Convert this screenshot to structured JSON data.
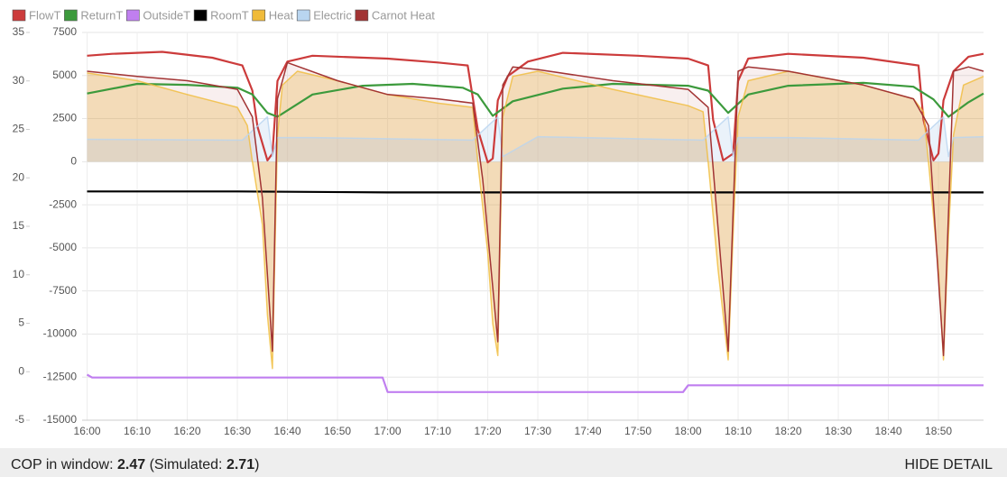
{
  "chart_data": {
    "type": "line",
    "grid": true,
    "xlim": [
      "15:59",
      "18:59"
    ],
    "xticks": [
      "16:00",
      "16:10",
      "16:20",
      "16:30",
      "16:40",
      "16:50",
      "17:00",
      "17:10",
      "17:20",
      "17:30",
      "17:40",
      "17:50",
      "18:00",
      "18:10",
      "18:20",
      "18:30",
      "18:40",
      "18:50"
    ],
    "ylim": [
      -5,
      35
    ],
    "yticks": [
      -5,
      0,
      5,
      10,
      15,
      20,
      25,
      30,
      35
    ],
    "y2lim": [
      -15000,
      7500
    ],
    "y2ticks": [
      -15000,
      -12500,
      -10000,
      -7500,
      -5000,
      -2500,
      0,
      2500,
      5000,
      7500
    ],
    "series": [
      {
        "name": "FlowT",
        "color": "#cc3b3b",
        "axis": "y",
        "fill": false,
        "x": [
          "16:00",
          "16:05",
          "16:15",
          "16:25",
          "16:31",
          "16:33",
          "16:34",
          "16:36",
          "16:37",
          "16:38",
          "16:40",
          "16:45",
          "17:00",
          "17:10",
          "17:16",
          "17:18",
          "17:20",
          "17:21",
          "17:22",
          "17:24",
          "17:28",
          "17:35",
          "17:50",
          "18:00",
          "18:04",
          "18:05",
          "18:07",
          "18:09",
          "18:10",
          "18:12",
          "18:20",
          "18:35",
          "18:46",
          "18:47",
          "18:49",
          "18:50",
          "18:51",
          "18:53",
          "18:56",
          "18:59"
        ],
        "values": [
          32.6,
          32.8,
          33.0,
          32.4,
          31.6,
          29.0,
          25.3,
          21.8,
          22.5,
          30.0,
          32.0,
          32.6,
          32.3,
          31.9,
          31.6,
          25.0,
          21.6,
          22.0,
          28.0,
          30.5,
          32.0,
          32.9,
          32.6,
          32.3,
          31.6,
          26.0,
          21.8,
          22.5,
          30.0,
          32.3,
          32.8,
          32.4,
          31.6,
          26.0,
          21.8,
          22.5,
          28.0,
          31.0,
          32.5,
          32.8
        ]
      },
      {
        "name": "ReturnT",
        "color": "#3c9a3c",
        "axis": "y",
        "fill": false,
        "x": [
          "16:00",
          "16:10",
          "16:20",
          "16:30",
          "16:33",
          "16:36",
          "16:38",
          "16:45",
          "16:55",
          "17:05",
          "17:15",
          "17:18",
          "17:21",
          "17:25",
          "17:35",
          "17:45",
          "18:00",
          "18:04",
          "18:08",
          "18:12",
          "18:20",
          "18:35",
          "18:45",
          "18:49",
          "18:52",
          "18:56",
          "18:59"
        ],
        "values": [
          28.7,
          29.7,
          29.6,
          29.3,
          28.6,
          26.7,
          26.3,
          28.6,
          29.5,
          29.7,
          29.3,
          28.6,
          26.4,
          27.9,
          29.2,
          29.7,
          29.5,
          29.0,
          26.7,
          28.6,
          29.5,
          29.8,
          29.4,
          28.1,
          26.3,
          27.8,
          28.7
        ]
      },
      {
        "name": "OutsideT",
        "color": "#c07ff0",
        "axis": "y",
        "fill": false,
        "x": [
          "16:00",
          "16:01",
          "16:59",
          "17:00",
          "17:59",
          "18:00",
          "18:59"
        ],
        "values": [
          -0.3,
          -0.6,
          -0.6,
          -2.1,
          -2.1,
          -1.4,
          -1.4
        ]
      },
      {
        "name": "RoomT",
        "color": "#000000",
        "axis": "y",
        "fill": false,
        "x": [
          "16:00",
          "16:30",
          "17:00",
          "17:30",
          "18:00",
          "18:30",
          "18:59"
        ],
        "values": [
          18.6,
          18.6,
          18.5,
          18.5,
          18.5,
          18.5,
          18.5
        ]
      },
      {
        "name": "Heat",
        "color": "#f0bb3a",
        "axis": "y2",
        "fill": true,
        "x": [
          "16:00",
          "16:10",
          "16:20",
          "16:30",
          "16:32",
          "16:33",
          "16:35",
          "16:36",
          "16:37",
          "16:38",
          "16:39",
          "16:42",
          "16:50",
          "17:00",
          "17:10",
          "17:17",
          "17:18",
          "17:20",
          "17:21",
          "17:22",
          "17:23",
          "17:25",
          "17:30",
          "17:45",
          "18:00",
          "18:03",
          "18:04",
          "18:06",
          "18:08",
          "18:09",
          "18:10",
          "18:12",
          "18:20",
          "18:35",
          "18:45",
          "18:47",
          "18:48",
          "18:50",
          "18:51",
          "18:52",
          "18:53",
          "18:55",
          "18:59"
        ],
        "values": [
          5150,
          4700,
          3900,
          3150,
          2100,
          0,
          -3650,
          -8900,
          -12000,
          1550,
          4450,
          5250,
          4700,
          3900,
          3400,
          3150,
          0,
          -5250,
          -9400,
          -11250,
          2600,
          4950,
          5250,
          4200,
          3250,
          2900,
          0,
          -6300,
          -11500,
          -4200,
          2600,
          4700,
          5250,
          4450,
          3650,
          2900,
          0,
          -6300,
          -11500,
          -4200,
          1550,
          4450,
          4950
        ]
      },
      {
        "name": "Electric",
        "color": "#b9d5f0",
        "axis": "y2",
        "fill": true,
        "x": [
          "16:00",
          "16:31",
          "16:33",
          "16:36",
          "16:37",
          "16:38",
          "16:45",
          "17:17",
          "17:19",
          "17:22",
          "17:23",
          "17:30",
          "18:03",
          "18:05",
          "18:08",
          "18:09",
          "18:10",
          "18:20",
          "18:46",
          "18:48",
          "18:51",
          "18:52",
          "18:53",
          "18:59"
        ],
        "values": [
          1300,
          1250,
          1800,
          2600,
          300,
          1400,
          1400,
          1250,
          1800,
          2600,
          300,
          1450,
          1250,
          1800,
          2600,
          300,
          1400,
          1400,
          1250,
          1800,
          2600,
          300,
          1400,
          1450
        ]
      },
      {
        "name": "Carnot Heat",
        "color": "#a23434",
        "axis": "y2",
        "fill": false,
        "x": [
          "16:00",
          "16:10",
          "16:20",
          "16:30",
          "16:33",
          "16:35",
          "16:37",
          "16:38",
          "16:40",
          "16:50",
          "17:00",
          "17:10",
          "17:17",
          "17:19",
          "17:22",
          "17:23",
          "17:25",
          "17:30",
          "17:45",
          "18:00",
          "18:04",
          "18:08",
          "18:10",
          "18:12",
          "18:20",
          "18:35",
          "18:45",
          "18:48",
          "18:51",
          "18:53",
          "18:56",
          "18:59"
        ],
        "values": [
          5250,
          4950,
          4700,
          4200,
          2600,
          -2100,
          -11000,
          3650,
          5750,
          4700,
          3900,
          3650,
          3400,
          -1050,
          -10450,
          4450,
          5500,
          5350,
          4700,
          4200,
          3150,
          -11000,
          5250,
          5500,
          5250,
          4450,
          3650,
          2100,
          -11250,
          5250,
          5500,
          5250
        ]
      }
    ]
  },
  "footer": {
    "cop_label": "COP in window:",
    "cop": 2.47,
    "simulated_prefix": "(Simulated:",
    "simulated": 2.71,
    "simulated_suffix": ")",
    "button": "HIDE DETAIL"
  }
}
